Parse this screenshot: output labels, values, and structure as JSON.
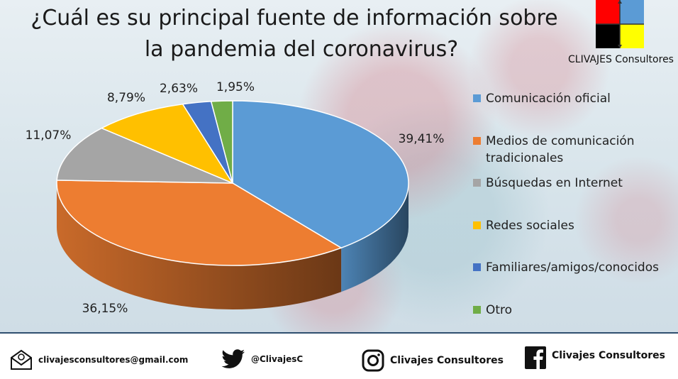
{
  "title": {
    "line1": "¿Cuál es su principal fuente de información sobre",
    "line2": "la pandemia del coronavirus?"
  },
  "logo": {
    "text": "CLIVAJES Consultores",
    "colors": [
      "#ff0000",
      "#5b9bd5",
      "#000000",
      "#ffff00"
    ]
  },
  "chart_data": {
    "type": "pie",
    "style": "3d",
    "legend_position": "right",
    "categories": [
      "Comunicación oficial",
      "Medios de comunicación tradicionales",
      "Búsquedas en Internet",
      "Redes sociales",
      "Familiares/amigos/conocidos",
      "Otro"
    ],
    "values": [
      39.41,
      36.15,
      11.07,
      8.79,
      2.63,
      1.95
    ],
    "data_labels": [
      "39,41%",
      "36,15%",
      "11,07%",
      "8,79%",
      "2,63%",
      "1,95%"
    ],
    "colors": [
      "#5b9bd5",
      "#ed7d31",
      "#a5a5a5",
      "#ffc000",
      "#4472c4",
      "#70ad47"
    ]
  },
  "legend": {
    "items": [
      {
        "label": "Comunicación oficial",
        "color": "#5b9bd5"
      },
      {
        "label": "Medios de comunicación tradicionales",
        "color": "#ed7d31"
      },
      {
        "label": "Búsquedas en Internet",
        "color": "#a5a5a5"
      },
      {
        "label": "Redes sociales",
        "color": "#ffc000"
      },
      {
        "label": "Familiares/amigos/conocidos",
        "color": "#4472c4"
      },
      {
        "label": "Otro",
        "color": "#70ad47"
      }
    ]
  },
  "footer": {
    "email": {
      "text": "clivajesconsultores@gmail.com",
      "icon": "email-icon"
    },
    "twitter": {
      "text": "@ClivajesC",
      "icon": "twitter-icon"
    },
    "instagram": {
      "text": "Clivajes Consultores",
      "icon": "instagram-icon"
    },
    "facebook": {
      "text": "Clivajes Consultores",
      "icon": "facebook-icon"
    }
  }
}
